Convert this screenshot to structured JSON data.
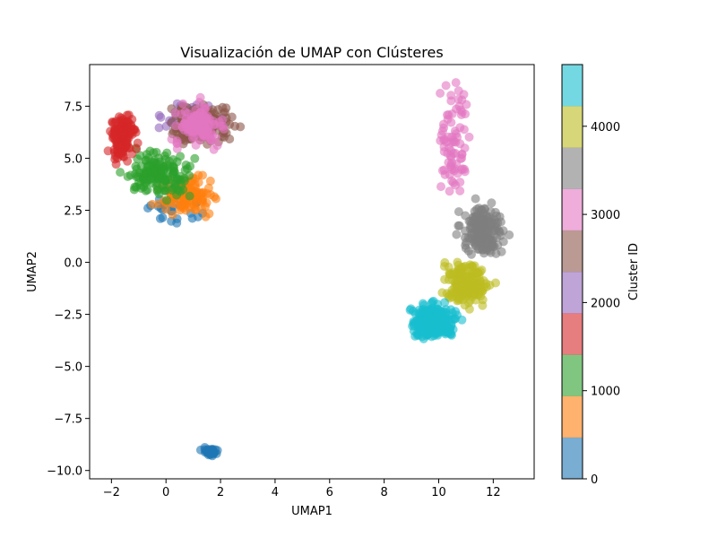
{
  "chart_data": {
    "type": "scatter",
    "title": "Visualización de UMAP con Clústeres",
    "xlabel": "UMAP1",
    "ylabel": "UMAP2",
    "xlim": [
      -2.8,
      13.5
    ],
    "ylim": [
      -10.4,
      9.5
    ],
    "xticks": [
      "−2",
      "0",
      "2",
      "4",
      "6",
      "8",
      "10",
      "12"
    ],
    "xtick_values": [
      -2,
      0,
      2,
      4,
      6,
      8,
      10,
      12
    ],
    "yticks": [
      "−10.0",
      "−7.5",
      "−5.0",
      "−2.5",
      "0.0",
      "2.5",
      "5.0",
      "7.5"
    ],
    "ytick_values": [
      -10,
      -7.5,
      -5,
      -2.5,
      0,
      2.5,
      5,
      7.5
    ],
    "grid": false,
    "legend": "none",
    "colorbar": {
      "label": "Cluster ID",
      "range": [
        0,
        4700
      ],
      "tick_values": [
        0,
        1000,
        2000,
        3000,
        4000
      ],
      "ticks": [
        "0",
        "1000",
        "2000",
        "3000",
        "4000"
      ],
      "colors": [
        "#1f77b4",
        "#ff7f0e",
        "#2ca02c",
        "#d62728",
        "#9467bd",
        "#8c564b",
        "#e377c2",
        "#7f7f7f",
        "#bcbd22",
        "#17becf"
      ]
    },
    "point_opacity": 0.6,
    "clusters": [
      {
        "color": "#1f77b4",
        "center": [
          1.6,
          -9.1
        ],
        "spread": [
          0.25,
          0.18
        ],
        "count": 45
      },
      {
        "color": "#1f77b4",
        "center": [
          0.5,
          2.5
        ],
        "spread": [
          1.2,
          0.6
        ],
        "count": 25
      },
      {
        "color": "#ff7f0e",
        "center": [
          0.8,
          3.2
        ],
        "spread": [
          1.0,
          0.8
        ],
        "count": 110
      },
      {
        "color": "#2ca02c",
        "center": [
          -0.3,
          4.2
        ],
        "spread": [
          1.1,
          1.0
        ],
        "count": 150
      },
      {
        "color": "#d62728",
        "center": [
          -1.6,
          6.0
        ],
        "spread": [
          0.45,
          1.1
        ],
        "count": 130
      },
      {
        "color": "#9467bd",
        "center": [
          1.0,
          7.0
        ],
        "spread": [
          1.0,
          0.8
        ],
        "count": 40
      },
      {
        "color": "#8c564b",
        "center": [
          1.3,
          6.6
        ],
        "spread": [
          1.1,
          1.0
        ],
        "count": 170
      },
      {
        "color": "#e377c2",
        "center": [
          1.2,
          6.6
        ],
        "spread": [
          0.9,
          0.9
        ],
        "count": 130
      },
      {
        "color": "#e377c2",
        "center": [
          10.6,
          6.0
        ],
        "spread": [
          0.5,
          2.5
        ],
        "count": 80
      },
      {
        "color": "#7f7f7f",
        "center": [
          11.6,
          1.5
        ],
        "spread": [
          0.7,
          1.1
        ],
        "count": 190
      },
      {
        "color": "#bcbd22",
        "center": [
          11.0,
          -1.0
        ],
        "spread": [
          0.8,
          1.0
        ],
        "count": 190
      },
      {
        "color": "#17becf",
        "center": [
          9.8,
          -2.8
        ],
        "spread": [
          0.8,
          0.8
        ],
        "count": 240
      }
    ]
  }
}
